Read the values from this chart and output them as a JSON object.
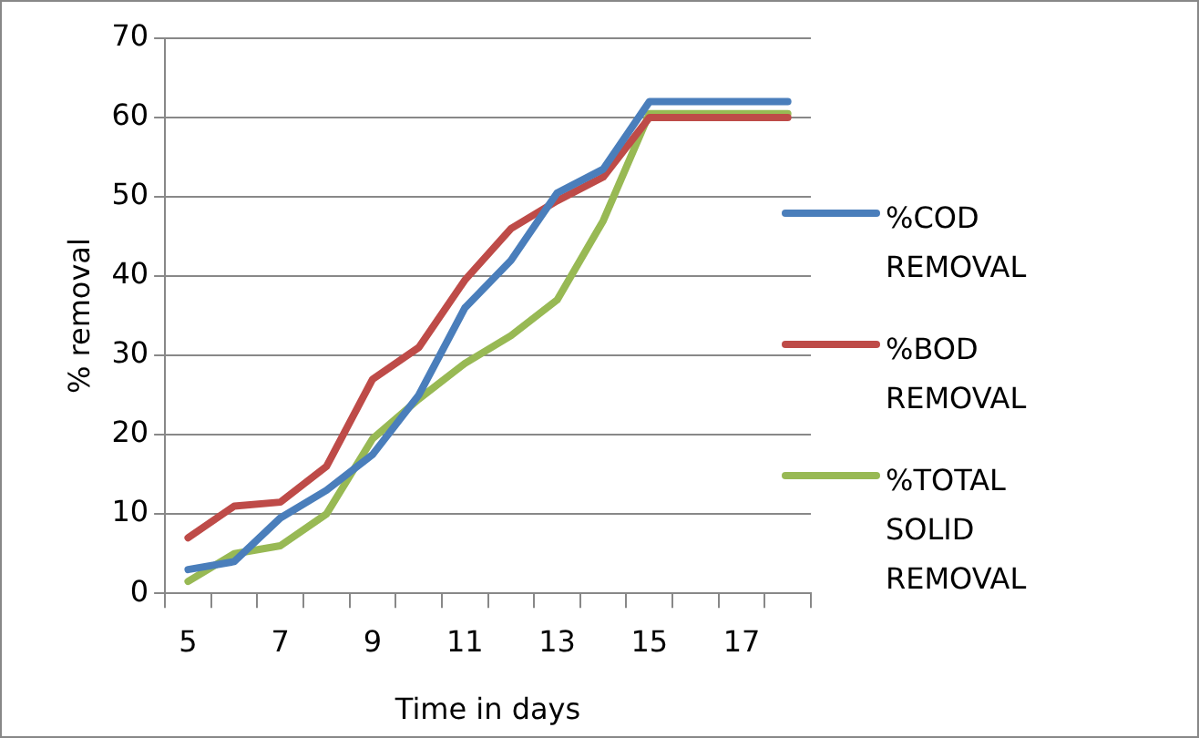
{
  "chart_data": {
    "type": "line",
    "xlabel": "Time in days",
    "ylabel": "% removal",
    "categories": [
      "5",
      null,
      "7",
      null,
      "9",
      null,
      "11",
      null,
      "13",
      null,
      "15",
      null,
      "17",
      null
    ],
    "series": [
      {
        "name": "%COD REMOVAL",
        "color": "#4a7ebb",
        "values": [
          3,
          4,
          9.5,
          13,
          17.5,
          25,
          36,
          42,
          50.5,
          53.5,
          62,
          62,
          62,
          62
        ]
      },
      {
        "name": "%BOD REMOVAL",
        "color": "#be4b48",
        "values": [
          7,
          11,
          11.5,
          16,
          27,
          31,
          39.5,
          46,
          49.5,
          52.5,
          60,
          60,
          60,
          60
        ]
      },
      {
        "name": "%TOTAL SOLID REMOVAL",
        "color": "#98b954",
        "values": [
          1.5,
          5,
          6,
          10,
          19.5,
          24.5,
          29,
          32.5,
          37,
          47,
          60.5,
          60.5,
          60.5,
          60.5
        ]
      }
    ],
    "ylim": [
      0,
      70
    ],
    "yticks": [
      0,
      10,
      20,
      30,
      40,
      50,
      60,
      70
    ],
    "grid": "y",
    "legend": "right",
    "marker": "none",
    "line_style": "solid"
  }
}
